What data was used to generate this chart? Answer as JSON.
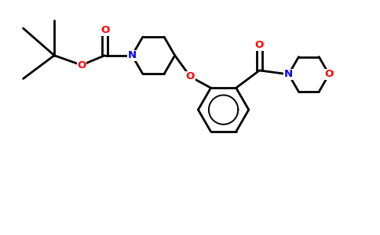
{
  "bg_color": "#ffffff",
  "atom_colors": {
    "N": "#0000ff",
    "O": "#ff0000",
    "C": "#000000"
  },
  "bond_color": "#000000",
  "bond_width": 2.0,
  "figsize": [
    4.84,
    3.0
  ],
  "dpi": 100,
  "xlim": [
    0,
    9.68
  ],
  "ylim": [
    0,
    6.0
  ]
}
